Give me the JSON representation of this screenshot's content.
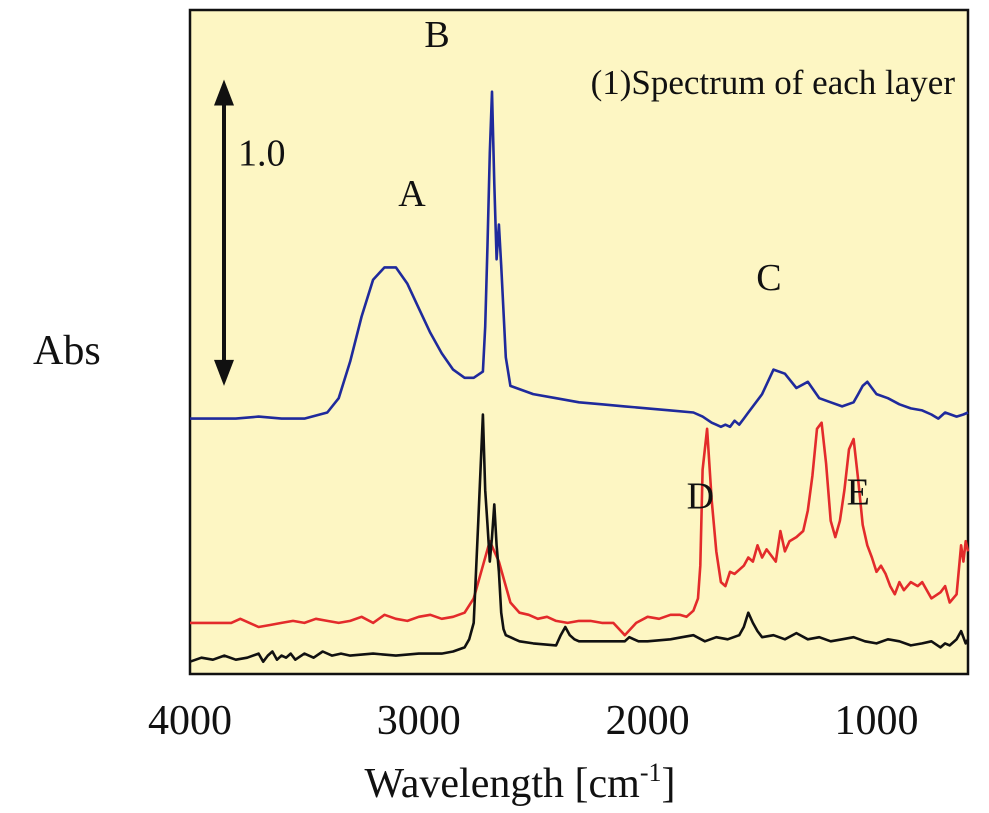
{
  "chart_data": {
    "type": "line",
    "title": "(1)Spectrum of each layer",
    "xlabel": "Wavelength [cm",
    "xlabel_sup": "-1",
    "xlabel_close": "]",
    "ylabel": "Abs",
    "xlim": [
      4000,
      600
    ],
    "ylim": [
      -0.25,
      3.0
    ],
    "x_reversed": true,
    "grid": false,
    "x_ticks": [
      {
        "value": 4000,
        "label": "4000"
      },
      {
        "value": 3000,
        "label": "3000"
      },
      {
        "value": 2000,
        "label": "2000"
      },
      {
        "value": 1000,
        "label": "1000"
      }
    ],
    "scale_bar": {
      "label": "1.0",
      "from": 1.16,
      "to": 2.66
    },
    "annotations": [
      {
        "label": "A",
        "x": 3030,
        "y": 2.04
      },
      {
        "label": "B",
        "x": 2920,
        "y": 2.82
      },
      {
        "label": "C",
        "x": 1470,
        "y": 1.63
      },
      {
        "label": "D",
        "x": 1770,
        "y": 0.56
      },
      {
        "label": "E",
        "x": 1080,
        "y": 0.58
      }
    ],
    "colors": {
      "background": "#fdf6c3",
      "axis": "#111111"
    },
    "series": [
      {
        "color": "#1f2a9c",
        "x": [
          4000,
          3800,
          3700,
          3600,
          3500,
          3400,
          3350,
          3300,
          3250,
          3200,
          3150,
          3100,
          3050,
          3000,
          2950,
          2900,
          2850,
          2800,
          2760,
          2720,
          2710,
          2700,
          2690,
          2680,
          2670,
          2660,
          2650,
          2640,
          2620,
          2600,
          2500,
          2400,
          2300,
          2200,
          2100,
          2000,
          1900,
          1800,
          1760,
          1720,
          1700,
          1680,
          1660,
          1640,
          1620,
          1600,
          1580,
          1560,
          1500,
          1450,
          1400,
          1350,
          1300,
          1250,
          1200,
          1150,
          1100,
          1080,
          1060,
          1040,
          1020,
          1000,
          950,
          900,
          850,
          800,
          760,
          730,
          700,
          650,
          620,
          600
        ],
        "y": [
          1.0,
          1.0,
          1.01,
          1.0,
          1.0,
          1.03,
          1.1,
          1.28,
          1.5,
          1.68,
          1.74,
          1.74,
          1.66,
          1.54,
          1.42,
          1.32,
          1.24,
          1.2,
          1.2,
          1.23,
          1.45,
          1.85,
          2.3,
          2.6,
          2.15,
          1.78,
          1.95,
          1.75,
          1.3,
          1.16,
          1.12,
          1.1,
          1.08,
          1.07,
          1.06,
          1.05,
          1.04,
          1.03,
          1.01,
          0.98,
          0.97,
          0.96,
          0.97,
          0.96,
          0.99,
          0.97,
          1.0,
          1.03,
          1.12,
          1.24,
          1.22,
          1.15,
          1.18,
          1.1,
          1.08,
          1.06,
          1.08,
          1.12,
          1.16,
          1.18,
          1.15,
          1.12,
          1.1,
          1.07,
          1.05,
          1.04,
          1.02,
          1.0,
          1.03,
          1.01,
          1.02,
          1.03
        ]
      },
      {
        "color": "#e32b2b",
        "x": [
          4000,
          3900,
          3820,
          3780,
          3740,
          3700,
          3650,
          3600,
          3550,
          3500,
          3450,
          3400,
          3350,
          3300,
          3250,
          3200,
          3150,
          3100,
          3050,
          3000,
          2950,
          2900,
          2850,
          2800,
          2760,
          2720,
          2690,
          2670,
          2650,
          2630,
          2600,
          2560,
          2520,
          2480,
          2440,
          2400,
          2350,
          2300,
          2250,
          2200,
          2150,
          2100,
          2050,
          2000,
          1950,
          1900,
          1860,
          1830,
          1800,
          1780,
          1770,
          1760,
          1740,
          1720,
          1700,
          1680,
          1660,
          1640,
          1620,
          1600,
          1580,
          1560,
          1540,
          1520,
          1500,
          1480,
          1460,
          1440,
          1420,
          1400,
          1380,
          1350,
          1320,
          1300,
          1280,
          1260,
          1240,
          1220,
          1200,
          1180,
          1160,
          1140,
          1120,
          1100,
          1080,
          1060,
          1040,
          1020,
          1000,
          980,
          960,
          940,
          920,
          900,
          880,
          850,
          820,
          800,
          760,
          720,
          700,
          680,
          650,
          630,
          620,
          610,
          600
        ],
        "y": [
          0.0,
          0.0,
          0.0,
          0.02,
          0.0,
          -0.02,
          -0.01,
          0.0,
          0.01,
          0.0,
          0.02,
          0.01,
          0.0,
          0.01,
          0.03,
          0.0,
          0.04,
          0.02,
          0.01,
          0.03,
          0.04,
          0.02,
          0.03,
          0.05,
          0.12,
          0.28,
          0.4,
          0.35,
          0.3,
          0.22,
          0.1,
          0.05,
          0.04,
          0.02,
          0.03,
          0.01,
          0.0,
          0.01,
          0.01,
          0.0,
          0.0,
          -0.06,
          0.0,
          0.03,
          0.02,
          0.04,
          0.04,
          0.03,
          0.06,
          0.12,
          0.28,
          0.75,
          0.95,
          0.6,
          0.35,
          0.2,
          0.18,
          0.25,
          0.24,
          0.26,
          0.28,
          0.32,
          0.3,
          0.38,
          0.32,
          0.36,
          0.33,
          0.3,
          0.45,
          0.35,
          0.4,
          0.42,
          0.45,
          0.55,
          0.72,
          0.95,
          0.98,
          0.78,
          0.5,
          0.42,
          0.5,
          0.65,
          0.85,
          0.9,
          0.7,
          0.48,
          0.38,
          0.32,
          0.25,
          0.28,
          0.24,
          0.18,
          0.14,
          0.2,
          0.16,
          0.2,
          0.18,
          0.2,
          0.12,
          0.15,
          0.18,
          0.1,
          0.14,
          0.38,
          0.3,
          0.4,
          0.35
        ]
      },
      {
        "color": "#111111",
        "x": [
          4000,
          3950,
          3900,
          3850,
          3800,
          3750,
          3700,
          3680,
          3660,
          3640,
          3620,
          3600,
          3580,
          3560,
          3540,
          3500,
          3460,
          3420,
          3380,
          3340,
          3300,
          3200,
          3100,
          3000,
          2950,
          2900,
          2850,
          2800,
          2780,
          2760,
          2740,
          2720,
          2710,
          2700,
          2690,
          2680,
          2670,
          2660,
          2650,
          2640,
          2630,
          2620,
          2600,
          2580,
          2560,
          2500,
          2400,
          2380,
          2360,
          2340,
          2320,
          2300,
          2200,
          2100,
          2080,
          2060,
          2040,
          2000,
          1900,
          1850,
          1800,
          1750,
          1700,
          1650,
          1600,
          1580,
          1560,
          1540,
          1520,
          1500,
          1450,
          1400,
          1350,
          1300,
          1250,
          1200,
          1150,
          1100,
          1050,
          1000,
          950,
          900,
          850,
          800,
          760,
          720,
          700,
          680,
          650,
          630,
          610,
          600
        ],
        "y": [
          -0.19,
          -0.17,
          -0.18,
          -0.16,
          -0.18,
          -0.17,
          -0.15,
          -0.19,
          -0.16,
          -0.14,
          -0.18,
          -0.16,
          -0.17,
          -0.15,
          -0.18,
          -0.15,
          -0.17,
          -0.14,
          -0.16,
          -0.15,
          -0.16,
          -0.15,
          -0.16,
          -0.15,
          -0.15,
          -0.15,
          -0.14,
          -0.12,
          -0.08,
          0.0,
          0.5,
          1.02,
          0.65,
          0.48,
          0.3,
          0.42,
          0.58,
          0.38,
          0.25,
          0.05,
          -0.03,
          -0.06,
          -0.07,
          -0.08,
          -0.09,
          -0.1,
          -0.11,
          -0.06,
          -0.02,
          -0.06,
          -0.08,
          -0.09,
          -0.09,
          -0.09,
          -0.07,
          -0.08,
          -0.09,
          -0.09,
          -0.08,
          -0.07,
          -0.06,
          -0.09,
          -0.07,
          -0.08,
          -0.06,
          -0.02,
          0.05,
          0.0,
          -0.04,
          -0.07,
          -0.06,
          -0.08,
          -0.05,
          -0.08,
          -0.07,
          -0.09,
          -0.08,
          -0.07,
          -0.09,
          -0.1,
          -0.08,
          -0.09,
          -0.11,
          -0.1,
          -0.09,
          -0.12,
          -0.1,
          -0.11,
          -0.08,
          -0.04,
          -0.1,
          -0.08
        ]
      }
    ]
  }
}
